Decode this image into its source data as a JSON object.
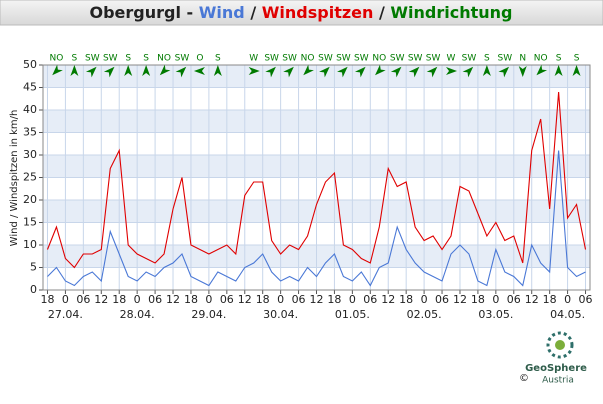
{
  "chart_data": {
    "type": "line",
    "station": "Obergurgl",
    "title_separator": "-",
    "separator": "/",
    "direction_name": "Windrichtung",
    "direction_color": "#007a00",
    "y_label": "Wind / Windspitzen in km/h",
    "ylim": [
      0,
      50
    ],
    "yticks": [
      0,
      5,
      10,
      15,
      20,
      25,
      30,
      35,
      40,
      45,
      50
    ],
    "xlim": [
      -1.5,
      181.5
    ],
    "xticks": [
      {
        "value": 0,
        "label": "18"
      },
      {
        "value": 6,
        "label": "0"
      },
      {
        "value": 12,
        "label": "06"
      },
      {
        "value": 18,
        "label": "12"
      },
      {
        "value": 24,
        "label": "18"
      },
      {
        "value": 30,
        "label": "0"
      },
      {
        "value": 36,
        "label": "06"
      },
      {
        "value": 42,
        "label": "12"
      },
      {
        "value": 48,
        "label": "18"
      },
      {
        "value": 54,
        "label": "0"
      },
      {
        "value": 60,
        "label": "06"
      },
      {
        "value": 66,
        "label": "12"
      },
      {
        "value": 72,
        "label": "18"
      },
      {
        "value": 78,
        "label": "0"
      },
      {
        "value": 84,
        "label": "06"
      },
      {
        "value": 90,
        "label": "12"
      },
      {
        "value": 96,
        "label": "18"
      },
      {
        "value": 102,
        "label": "0"
      },
      {
        "value": 108,
        "label": "06"
      },
      {
        "value": 114,
        "label": "12"
      },
      {
        "value": 120,
        "label": "18"
      },
      {
        "value": 126,
        "label": "0"
      },
      {
        "value": 132,
        "label": "06"
      },
      {
        "value": 138,
        "label": "12"
      },
      {
        "value": 144,
        "label": "18"
      },
      {
        "value": 150,
        "label": "0"
      },
      {
        "value": 156,
        "label": "06"
      },
      {
        "value": 162,
        "label": "12"
      },
      {
        "value": 168,
        "label": "18"
      },
      {
        "value": 174,
        "label": "0"
      },
      {
        "value": 180,
        "label": "06"
      }
    ],
    "x_date_labels": [
      {
        "value": 6,
        "label": "27.04."
      },
      {
        "value": 30,
        "label": "28.04."
      },
      {
        "value": 54,
        "label": "29.04."
      },
      {
        "value": 78,
        "label": "30.04."
      },
      {
        "value": 102,
        "label": "01.05."
      },
      {
        "value": 126,
        "label": "02.05."
      },
      {
        "value": 150,
        "label": "03.05."
      },
      {
        "value": 174,
        "label": "04.05."
      }
    ],
    "grid": true,
    "x": [
      0,
      3,
      6,
      9,
      12,
      15,
      18,
      21,
      24,
      27,
      30,
      33,
      36,
      39,
      42,
      45,
      48,
      51,
      54,
      57,
      60,
      63,
      66,
      69,
      72,
      75,
      78,
      81,
      84,
      87,
      90,
      93,
      96,
      99,
      102,
      105,
      108,
      111,
      114,
      117,
      120,
      123,
      126,
      129,
      132,
      135,
      138,
      141,
      144,
      147,
      150,
      153,
      156,
      159,
      162,
      165,
      168,
      171,
      174,
      177,
      180
    ],
    "series": [
      {
        "name": "Wind",
        "color": "#4a78d6",
        "values": [
          3,
          5,
          2,
          1,
          3,
          4,
          2,
          13,
          8,
          3,
          2,
          4,
          3,
          5,
          6,
          8,
          3,
          2,
          1,
          4,
          3,
          2,
          5,
          6,
          8,
          4,
          2,
          3,
          2,
          5,
          3,
          6,
          8,
          3,
          2,
          4,
          1,
          5,
          6,
          14,
          9,
          6,
          4,
          3,
          2,
          8,
          10,
          8,
          2,
          1,
          9,
          4,
          3,
          1,
          10,
          6,
          4,
          31,
          5,
          3,
          4
        ]
      },
      {
        "name": "Windspitzen",
        "color": "#e00000",
        "values": [
          9,
          14,
          7,
          5,
          8,
          8,
          9,
          27,
          31,
          10,
          8,
          7,
          6,
          8,
          18,
          25,
          10,
          9,
          8,
          9,
          10,
          8,
          21,
          24,
          24,
          11,
          8,
          10,
          9,
          12,
          19,
          24,
          26,
          10,
          9,
          7,
          6,
          14,
          27,
          23,
          24,
          14,
          11,
          12,
          9,
          12,
          23,
          22,
          17,
          12,
          15,
          11,
          12,
          6,
          31,
          38,
          18,
          44,
          16,
          19,
          9
        ]
      }
    ],
    "directions": {
      "x": [
        3,
        9,
        15,
        21,
        27,
        33,
        39,
        45,
        51,
        57,
        63,
        69,
        75,
        81,
        87,
        93,
        99,
        105,
        111,
        117,
        123,
        129,
        135,
        141,
        147,
        153,
        159,
        165,
        171,
        177
      ],
      "labels": [
        "NO",
        "S",
        "SW",
        "SW",
        "S",
        "S",
        "NO",
        "SW",
        "O",
        "S",
        null,
        "W",
        "SW",
        "SW",
        "NO",
        "SW",
        "SW",
        "SW",
        "NO",
        "SW",
        "SW",
        "SW",
        "W",
        "SW",
        "S",
        "SW",
        "N",
        "NO",
        "S",
        "S"
      ]
    }
  },
  "logo": {
    "name": "GeoSphere",
    "sub": "Austria",
    "copyright": "©"
  }
}
